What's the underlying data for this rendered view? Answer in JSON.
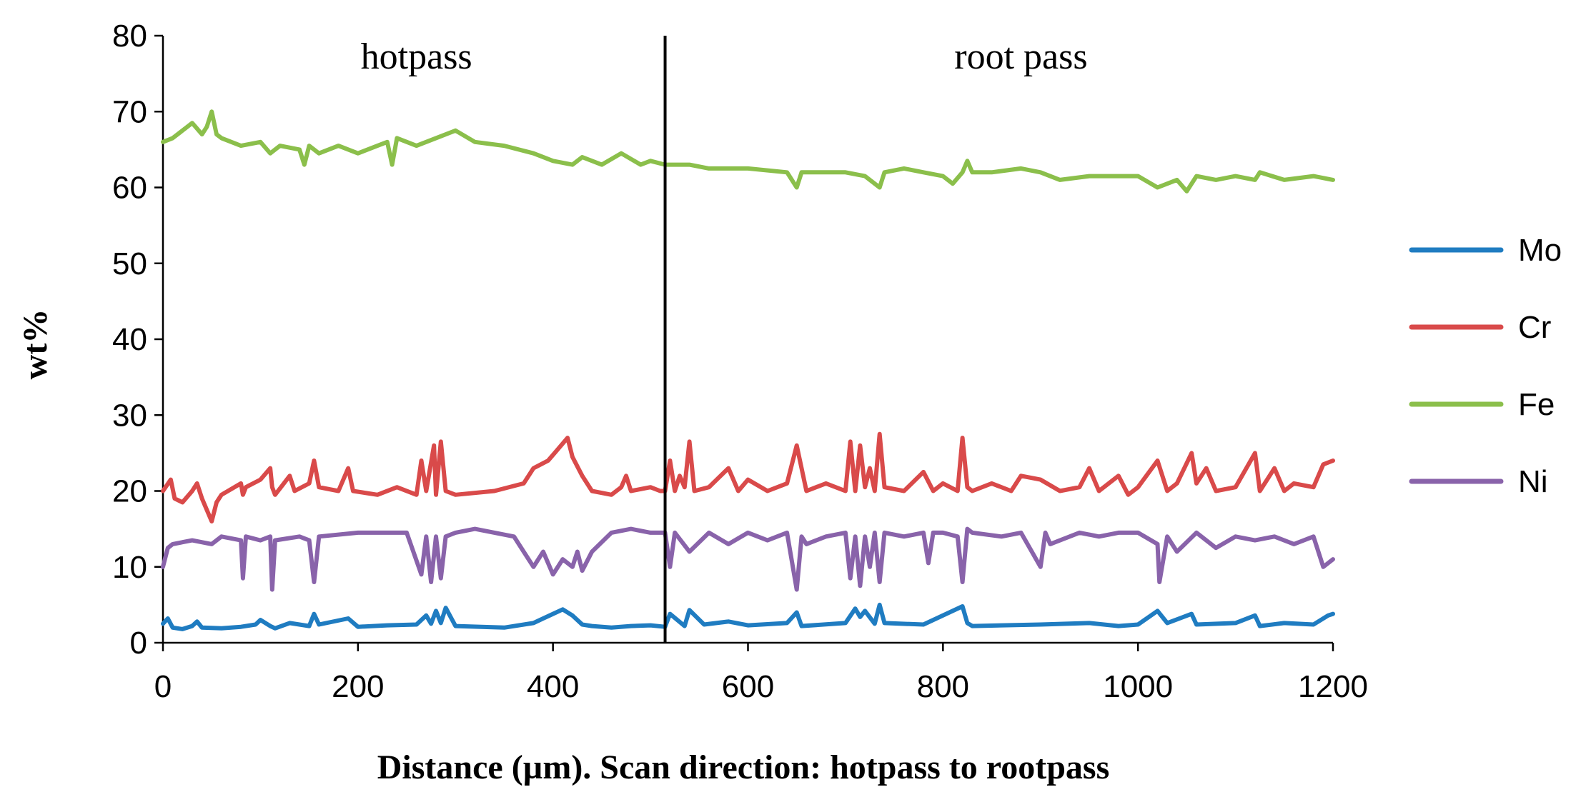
{
  "chart_data": {
    "type": "line",
    "title": "",
    "xlabel": "Distance (µm). Scan direction: hotpass to rootpass",
    "ylabel": "wt%",
    "xlim": [
      0,
      1200
    ],
    "ylim": [
      0,
      80
    ],
    "xticks": [
      0,
      200,
      400,
      600,
      800,
      1000,
      1200
    ],
    "yticks": [
      0,
      10,
      20,
      30,
      40,
      50,
      60,
      70,
      80
    ],
    "grid": false,
    "legend_position": "right",
    "divider_x": 515,
    "regions": [
      {
        "label": "hotpass",
        "x_center": 260
      },
      {
        "label": "root pass",
        "x_center": 880
      }
    ],
    "series": [
      {
        "name": "Mo",
        "color": "#1f7cc1",
        "x": [
          0,
          5,
          10,
          20,
          30,
          35,
          40,
          60,
          80,
          95,
          100,
          110,
          115,
          130,
          150,
          155,
          160,
          190,
          200,
          230,
          260,
          270,
          275,
          280,
          285,
          290,
          300,
          350,
          380,
          400,
          410,
          420,
          430,
          440,
          460,
          480,
          500,
          515,
          520,
          535,
          540,
          555,
          580,
          600,
          640,
          650,
          655,
          700,
          710,
          715,
          720,
          730,
          735,
          740,
          780,
          820,
          825,
          830,
          900,
          950,
          980,
          1000,
          1020,
          1025,
          1030,
          1055,
          1060,
          1100,
          1120,
          1125,
          1150,
          1180,
          1195,
          1200
        ],
        "values": [
          2.5,
          3.2,
          2.0,
          1.8,
          2.2,
          2.8,
          2.0,
          1.9,
          2.1,
          2.4,
          3.0,
          2.2,
          1.9,
          2.6,
          2.2,
          3.8,
          2.4,
          3.2,
          2.1,
          2.3,
          2.4,
          3.6,
          2.5,
          4.2,
          2.6,
          4.6,
          2.2,
          2.0,
          2.6,
          3.8,
          4.4,
          3.6,
          2.4,
          2.2,
          2.0,
          2.2,
          2.3,
          2.1,
          3.8,
          2.2,
          4.3,
          2.4,
          2.8,
          2.3,
          2.6,
          4.0,
          2.2,
          2.6,
          4.5,
          3.4,
          4.2,
          2.5,
          5.0,
          2.6,
          2.4,
          4.8,
          2.6,
          2.2,
          2.4,
          2.6,
          2.2,
          2.4,
          4.2,
          3.4,
          2.6,
          3.8,
          2.4,
          2.6,
          3.6,
          2.2,
          2.6,
          2.4,
          3.6,
          3.8
        ]
      },
      {
        "name": "Cr",
        "color": "#d94a4a",
        "x": [
          0,
          8,
          12,
          20,
          30,
          35,
          40,
          50,
          55,
          60,
          80,
          82,
          85,
          100,
          110,
          112,
          115,
          130,
          135,
          150,
          155,
          160,
          180,
          190,
          195,
          220,
          240,
          260,
          265,
          270,
          278,
          280,
          285,
          290,
          300,
          340,
          370,
          380,
          395,
          405,
          415,
          420,
          430,
          440,
          460,
          470,
          475,
          480,
          500,
          510,
          515,
          520,
          525,
          530,
          535,
          540,
          545,
          560,
          580,
          590,
          600,
          620,
          640,
          650,
          660,
          680,
          700,
          705,
          710,
          715,
          720,
          725,
          730,
          735,
          740,
          760,
          780,
          790,
          800,
          815,
          820,
          825,
          830,
          850,
          870,
          880,
          900,
          920,
          940,
          950,
          960,
          980,
          990,
          1000,
          1020,
          1025,
          1030,
          1040,
          1055,
          1060,
          1070,
          1080,
          1100,
          1120,
          1125,
          1140,
          1150,
          1160,
          1180,
          1190,
          1200
        ],
        "values": [
          20.0,
          21.5,
          19.0,
          18.5,
          20.0,
          21.0,
          19.0,
          16.0,
          18.5,
          19.5,
          21.0,
          19.5,
          20.5,
          21.5,
          23.0,
          20.5,
          19.5,
          22.0,
          20.0,
          21.0,
          24.0,
          20.5,
          20.0,
          23.0,
          20.0,
          19.5,
          20.5,
          19.5,
          24.0,
          20.0,
          26.0,
          19.5,
          26.5,
          20.0,
          19.5,
          20.0,
          21.0,
          23.0,
          24.0,
          25.5,
          27.0,
          24.5,
          22.0,
          20.0,
          19.5,
          20.5,
          22.0,
          20.0,
          20.5,
          20.0,
          20.0,
          24.0,
          20.0,
          22.0,
          20.5,
          26.5,
          20.0,
          20.5,
          23.0,
          20.0,
          21.5,
          20.0,
          21.0,
          26.0,
          20.0,
          21.0,
          20.0,
          26.5,
          20.0,
          26.0,
          20.5,
          23.0,
          20.0,
          27.5,
          20.5,
          20.0,
          22.5,
          20.0,
          21.0,
          20.0,
          27.0,
          20.5,
          20.0,
          21.0,
          20.0,
          22.0,
          21.5,
          20.0,
          20.5,
          23.0,
          20.0,
          22.0,
          19.5,
          20.5,
          24.0,
          22.0,
          20.0,
          21.0,
          25.0,
          21.0,
          23.0,
          20.0,
          20.5,
          25.0,
          20.0,
          23.0,
          20.0,
          21.0,
          20.5,
          23.5,
          24.0
        ]
      },
      {
        "name": "Fe",
        "color": "#8bbf4b",
        "x": [
          0,
          10,
          20,
          30,
          40,
          45,
          50,
          55,
          60,
          80,
          100,
          110,
          120,
          140,
          145,
          150,
          160,
          180,
          200,
          220,
          230,
          235,
          240,
          260,
          280,
          300,
          320,
          350,
          380,
          400,
          420,
          430,
          450,
          470,
          490,
          500,
          515,
          540,
          560,
          600,
          640,
          650,
          655,
          700,
          720,
          735,
          740,
          760,
          780,
          800,
          810,
          820,
          825,
          830,
          850,
          880,
          900,
          920,
          950,
          1000,
          1020,
          1040,
          1050,
          1060,
          1080,
          1100,
          1120,
          1125,
          1150,
          1180,
          1200
        ],
        "values": [
          66.0,
          66.5,
          67.5,
          68.5,
          67.0,
          68.0,
          70.0,
          67.0,
          66.5,
          65.5,
          66.0,
          64.5,
          65.5,
          65.0,
          63.0,
          65.5,
          64.5,
          65.5,
          64.5,
          65.5,
          66.0,
          63.0,
          66.5,
          65.5,
          66.5,
          67.5,
          66.0,
          65.5,
          64.5,
          63.5,
          63.0,
          64.0,
          63.0,
          64.5,
          63.0,
          63.5,
          63.0,
          63.0,
          62.5,
          62.5,
          62.0,
          60.0,
          62.0,
          62.0,
          61.5,
          60.0,
          62.0,
          62.5,
          62.0,
          61.5,
          60.5,
          62.0,
          63.5,
          62.0,
          62.0,
          62.5,
          62.0,
          61.0,
          61.5,
          61.5,
          60.0,
          61.0,
          59.5,
          61.5,
          61.0,
          61.5,
          61.0,
          62.0,
          61.0,
          61.5,
          61.0
        ]
      },
      {
        "name": "Ni",
        "color": "#8963aa",
        "x": [
          0,
          5,
          10,
          30,
          50,
          60,
          80,
          82,
          85,
          100,
          110,
          112,
          115,
          140,
          150,
          155,
          160,
          200,
          250,
          265,
          270,
          275,
          280,
          285,
          290,
          300,
          320,
          360,
          370,
          380,
          390,
          400,
          410,
          420,
          425,
          430,
          440,
          460,
          480,
          500,
          515,
          520,
          525,
          540,
          560,
          580,
          600,
          620,
          640,
          650,
          655,
          660,
          680,
          700,
          705,
          710,
          715,
          720,
          725,
          730,
          735,
          740,
          760,
          780,
          785,
          790,
          800,
          815,
          820,
          825,
          830,
          860,
          880,
          900,
          905,
          910,
          940,
          960,
          980,
          1000,
          1020,
          1022,
          1030,
          1040,
          1060,
          1080,
          1100,
          1120,
          1140,
          1160,
          1180,
          1190,
          1200
        ],
        "values": [
          10.0,
          12.5,
          13.0,
          13.5,
          13.0,
          14.0,
          13.5,
          8.5,
          14.0,
          13.5,
          14.0,
          7.0,
          13.5,
          14.0,
          13.5,
          8.0,
          14.0,
          14.5,
          14.5,
          9.0,
          14.0,
          8.0,
          14.0,
          8.5,
          14.0,
          14.5,
          15.0,
          14.0,
          12.0,
          10.0,
          12.0,
          9.0,
          11.0,
          10.0,
          12.0,
          9.5,
          12.0,
          14.5,
          15.0,
          14.5,
          14.5,
          10.0,
          14.5,
          12.0,
          14.5,
          13.0,
          14.5,
          13.5,
          14.5,
          7.0,
          14.0,
          13.0,
          14.0,
          14.5,
          8.5,
          14.0,
          7.5,
          14.0,
          10.0,
          14.5,
          8.0,
          14.5,
          14.0,
          14.5,
          10.5,
          14.5,
          14.5,
          14.0,
          8.0,
          15.0,
          14.5,
          14.0,
          14.5,
          10.0,
          14.5,
          13.0,
          14.5,
          14.0,
          14.5,
          14.5,
          13.0,
          8.0,
          14.0,
          12.0,
          14.5,
          12.5,
          14.0,
          13.5,
          14.0,
          13.0,
          14.0,
          10.0,
          11.0
        ]
      }
    ]
  }
}
